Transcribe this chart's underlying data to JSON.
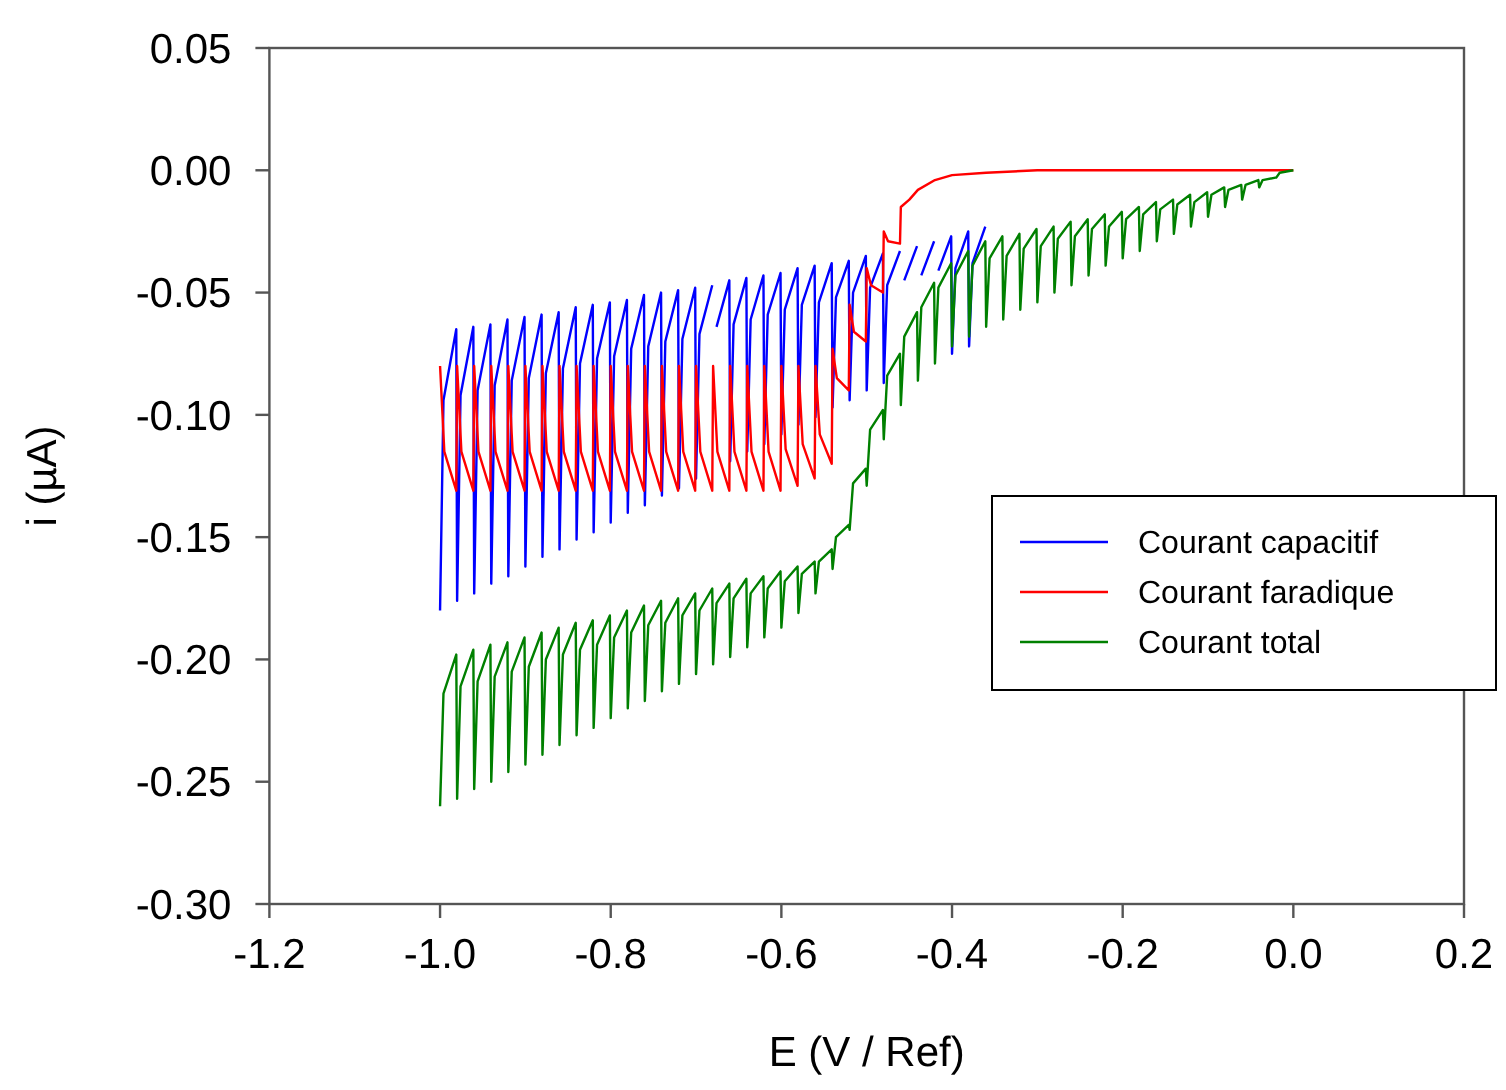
{
  "chart_data": {
    "type": "line",
    "xlabel": "E (V / Ref)",
    "ylabel": "i (µA)",
    "xlim": [
      -1.2,
      0.2
    ],
    "xticks": [
      {
        "value": -1.2,
        "label": "-1.2"
      },
      {
        "value": -1.0,
        "label": "-1.0"
      },
      {
        "value": -0.8,
        "label": "-0.8"
      },
      {
        "value": -0.6,
        "label": "-0.6"
      },
      {
        "value": -0.4,
        "label": "-0.4"
      },
      {
        "value": -0.2,
        "label": "-0.2"
      },
      {
        "value": 0,
        "label": "0.0"
      },
      {
        "value": 0.2,
        "label": "0.2"
      }
    ],
    "ylim": [
      -0.3,
      0.05
    ],
    "yticks": [
      {
        "value": -0.3,
        "label": "-0.30"
      },
      {
        "value": -0.25,
        "label": "-0.25"
      },
      {
        "value": -0.2,
        "label": "-0.20"
      },
      {
        "value": -0.15,
        "label": "-0.15"
      },
      {
        "value": -0.1,
        "label": "-0.10"
      },
      {
        "value": -0.05,
        "label": "-0.05"
      },
      {
        "value": 0,
        "label": "0.00"
      },
      {
        "value": 0.05,
        "label": "0.05"
      }
    ],
    "grid": false,
    "legend": "right",
    "marker": "none",
    "line_style": "solid",
    "series": [
      {
        "name": "Courant capacitif",
        "color": "#0000ff",
        "x": [
          -1,
          -0.996,
          -0.981,
          -0.98,
          -0.976,
          -0.961,
          -0.96,
          -0.956,
          -0.941,
          -0.94,
          -0.936,
          -0.921,
          -0.92,
          -0.916,
          -0.901,
          -0.9,
          -0.896,
          -0.881,
          -0.88,
          -0.876,
          -0.861,
          -0.86,
          -0.856,
          -0.841,
          -0.84,
          -0.836,
          -0.821,
          -0.82,
          -0.816,
          -0.801,
          -0.8,
          -0.796,
          -0.781,
          -0.78,
          -0.776,
          -0.761,
          -0.76,
          -0.756,
          -0.741,
          -0.74,
          -0.736,
          -0.721,
          -0.72,
          -0.716,
          -0.701,
          -0.7,
          -0.696,
          -0.681,
          -0.68,
          -0.676,
          -0.661,
          -0.66,
          -0.656,
          -0.641,
          -0.64,
          -0.636,
          -0.621,
          -0.62,
          -0.616,
          -0.601,
          -0.6,
          -0.596,
          -0.581,
          -0.58,
          -0.576,
          -0.561,
          -0.56,
          -0.556,
          -0.541,
          -0.54,
          -0.536,
          -0.521,
          -0.52,
          -0.516,
          -0.501,
          -0.5,
          -0.496,
          -0.481,
          -0.48,
          -0.476,
          -0.461,
          -0.46,
          -0.456,
          -0.441,
          -0.44,
          -0.436,
          -0.421,
          -0.42,
          -0.416,
          -0.401,
          -0.4,
          -0.396,
          -0.381,
          -0.38,
          -0.376,
          -0.361
        ],
        "values": [
          -0.18,
          -0.094,
          -0.065,
          -0.176,
          -0.092,
          -0.064,
          -0.173,
          -0.09,
          -0.063,
          -0.169,
          -0.088,
          -0.061,
          -0.166,
          -0.086,
          -0.06,
          -0.162,
          -0.085,
          -0.059,
          -0.158,
          -0.083,
          -0.058,
          -0.155,
          -0.081,
          -0.056,
          -0.151,
          -0.079,
          -0.055,
          -0.148,
          -0.077,
          -0.054,
          -0.144,
          -0.076,
          -0.053,
          -0.14,
          -0.073,
          -0.051,
          -0.137,
          -0.072,
          -0.05,
          -0.133,
          -0.07,
          -0.049,
          -0.13,
          -0.069,
          -0.048,
          -0.126,
          -0.067,
          -0.047,
          null,
          -0.064,
          -0.045,
          -0.119,
          -0.063,
          -0.044,
          -0.115,
          -0.061,
          -0.043,
          -0.112,
          -0.059,
          -0.042,
          -0.108,
          -0.057,
          -0.04,
          -0.104,
          -0.055,
          -0.039,
          -0.101,
          -0.054,
          -0.038,
          -0.097,
          -0.052,
          -0.037,
          -0.094,
          -0.05,
          -0.035,
          -0.09,
          -0.048,
          -0.034,
          -0.087,
          -0.047,
          -0.033,
          null,
          -0.045,
          -0.031,
          null,
          -0.043,
          -0.029,
          null,
          -0.041,
          -0.027,
          -0.075,
          -0.04,
          -0.025,
          -0.072,
          -0.038,
          -0.023
        ]
      },
      {
        "name": "Courant faradique",
        "color": "#ff0000",
        "x": [
          -1,
          -0.995,
          -0.981,
          -0.98,
          -0.975,
          -0.961,
          -0.96,
          -0.955,
          -0.941,
          -0.94,
          -0.935,
          -0.921,
          -0.92,
          -0.915,
          -0.901,
          -0.9,
          -0.895,
          -0.881,
          -0.88,
          -0.875,
          -0.861,
          -0.86,
          -0.855,
          -0.841,
          -0.84,
          -0.835,
          -0.821,
          -0.82,
          -0.815,
          -0.801,
          -0.8,
          -0.795,
          -0.781,
          -0.78,
          -0.775,
          -0.761,
          -0.76,
          -0.755,
          -0.741,
          -0.74,
          -0.735,
          -0.721,
          -0.72,
          -0.715,
          -0.701,
          -0.7,
          -0.695,
          -0.681,
          -0.68,
          -0.675,
          -0.661,
          -0.66,
          -0.655,
          -0.641,
          -0.64,
          -0.635,
          -0.621,
          -0.62,
          -0.615,
          -0.601,
          -0.6,
          -0.595,
          -0.581,
          -0.58,
          -0.575,
          -0.561,
          -0.56,
          -0.555,
          -0.541,
          -0.54,
          -0.535,
          -0.521,
          -0.52,
          -0.515,
          -0.501,
          -0.5,
          -0.495,
          -0.481,
          -0.48,
          -0.475,
          -0.461,
          -0.46,
          -0.45,
          -0.44,
          -0.42,
          -0.4,
          -0.36,
          -0.3,
          0
        ],
        "values": [
          -0.08,
          -0.115,
          -0.131,
          -0.08,
          -0.115,
          -0.131,
          -0.08,
          -0.115,
          -0.131,
          -0.08,
          -0.115,
          -0.131,
          -0.08,
          -0.115,
          -0.131,
          -0.08,
          -0.115,
          -0.131,
          -0.08,
          -0.115,
          -0.131,
          -0.08,
          -0.115,
          -0.131,
          -0.08,
          -0.115,
          -0.131,
          -0.08,
          -0.115,
          -0.131,
          -0.08,
          -0.115,
          -0.131,
          -0.08,
          -0.115,
          -0.131,
          -0.08,
          -0.115,
          -0.131,
          -0.08,
          -0.115,
          -0.131,
          -0.08,
          -0.115,
          -0.131,
          -0.08,
          -0.115,
          -0.131,
          -0.08,
          -0.115,
          -0.131,
          -0.08,
          -0.115,
          -0.131,
          -0.08,
          -0.115,
          -0.131,
          -0.08,
          -0.115,
          -0.131,
          -0.08,
          -0.114,
          -0.129,
          -0.08,
          -0.112,
          -0.126,
          -0.08,
          -0.108,
          -0.12,
          -0.073,
          -0.085,
          -0.09,
          -0.055,
          -0.066,
          -0.07,
          -0.04,
          -0.047,
          -0.05,
          -0.025,
          -0.029,
          -0.03,
          -0.015,
          -0.012,
          -0.008,
          -0.004,
          -0.002,
          -0.001,
          0,
          0
        ]
      },
      {
        "name": "Courant total",
        "color": "#008000",
        "x": [
          -1,
          -0.996,
          -0.981,
          -0.98,
          -0.976,
          -0.961,
          -0.96,
          -0.956,
          -0.941,
          -0.94,
          -0.936,
          -0.921,
          -0.92,
          -0.916,
          -0.901,
          -0.9,
          -0.896,
          -0.881,
          -0.88,
          -0.876,
          -0.861,
          -0.86,
          -0.856,
          -0.841,
          -0.84,
          -0.836,
          -0.821,
          -0.82,
          -0.816,
          -0.801,
          -0.8,
          -0.796,
          -0.781,
          -0.78,
          -0.776,
          -0.761,
          -0.76,
          -0.756,
          -0.741,
          -0.74,
          -0.736,
          -0.721,
          -0.72,
          -0.716,
          -0.701,
          -0.7,
          -0.696,
          -0.681,
          -0.68,
          -0.676,
          -0.661,
          -0.66,
          -0.656,
          -0.641,
          -0.64,
          -0.636,
          -0.621,
          -0.62,
          -0.616,
          -0.601,
          -0.6,
          -0.596,
          -0.581,
          -0.58,
          -0.576,
          -0.561,
          -0.56,
          -0.556,
          -0.541,
          -0.54,
          -0.536,
          -0.521,
          -0.52,
          -0.516,
          -0.501,
          -0.5,
          -0.496,
          -0.481,
          -0.48,
          -0.476,
          -0.461,
          -0.46,
          -0.456,
          -0.441,
          -0.44,
          -0.436,
          -0.421,
          -0.42,
          -0.416,
          -0.401,
          -0.4,
          -0.396,
          -0.381,
          -0.38,
          -0.376,
          -0.361,
          -0.36,
          -0.356,
          -0.341,
          -0.34,
          -0.336,
          -0.321,
          -0.32,
          -0.316,
          -0.301,
          -0.3,
          -0.296,
          -0.281,
          -0.28,
          -0.276,
          -0.261,
          -0.26,
          -0.256,
          -0.241,
          -0.24,
          -0.236,
          -0.221,
          -0.22,
          -0.216,
          -0.201,
          -0.2,
          -0.196,
          -0.181,
          -0.18,
          -0.176,
          -0.161,
          -0.16,
          -0.156,
          -0.141,
          -0.14,
          -0.136,
          -0.121,
          -0.12,
          -0.116,
          -0.101,
          -0.1,
          -0.096,
          -0.081,
          -0.08,
          -0.076,
          -0.061,
          -0.06,
          -0.056,
          -0.041,
          -0.04,
          -0.036,
          -0.021,
          -0.02,
          -0.016,
          0
        ],
        "values": [
          -0.26,
          -0.214,
          -0.198,
          -0.257,
          -0.211,
          -0.196,
          -0.253,
          -0.209,
          -0.194,
          -0.25,
          -0.207,
          -0.193,
          -0.246,
          -0.205,
          -0.191,
          -0.243,
          -0.203,
          -0.189,
          -0.239,
          -0.2,
          -0.187,
          -0.235,
          -0.198,
          -0.185,
          -0.231,
          -0.196,
          -0.184,
          -0.228,
          -0.194,
          -0.182,
          -0.224,
          -0.191,
          -0.18,
          -0.22,
          -0.189,
          -0.178,
          -0.217,
          -0.186,
          -0.176,
          -0.213,
          -0.185,
          -0.175,
          -0.21,
          -0.182,
          -0.173,
          -0.206,
          -0.18,
          -0.171,
          -0.202,
          -0.177,
          -0.169,
          -0.199,
          -0.175,
          -0.167,
          -0.195,
          -0.173,
          -0.166,
          -0.191,
          -0.171,
          -0.164,
          -0.187,
          -0.168,
          -0.162,
          -0.181,
          -0.165,
          -0.16,
          -0.173,
          -0.16,
          -0.155,
          -0.163,
          -0.15,
          -0.145,
          -0.147,
          -0.128,
          -0.122,
          -0.129,
          -0.106,
          -0.098,
          -0.11,
          -0.084,
          -0.075,
          -0.096,
          -0.068,
          -0.058,
          -0.086,
          -0.056,
          -0.046,
          -0.079,
          -0.048,
          -0.038,
          -0.072,
          -0.043,
          -0.033,
          -0.068,
          -0.039,
          -0.029,
          -0.064,
          -0.036,
          -0.027,
          -0.061,
          -0.035,
          -0.026,
          -0.057,
          -0.032,
          -0.024,
          -0.054,
          -0.031,
          -0.023,
          -0.05,
          -0.028,
          -0.021,
          -0.047,
          -0.027,
          -0.02,
          -0.043,
          -0.024,
          -0.018,
          -0.039,
          -0.023,
          -0.017,
          -0.036,
          -0.02,
          -0.015,
          -0.033,
          -0.018,
          -0.013,
          -0.029,
          -0.016,
          -0.012,
          -0.026,
          -0.014,
          -0.01,
          -0.023,
          -0.013,
          -0.009,
          -0.019,
          -0.01,
          -0.007,
          -0.015,
          -0.008,
          -0.006,
          -0.012,
          -0.006,
          -0.004,
          -0.007,
          -0.004,
          -0.003,
          -0.003,
          -0.001,
          0
        ]
      }
    ]
  }
}
